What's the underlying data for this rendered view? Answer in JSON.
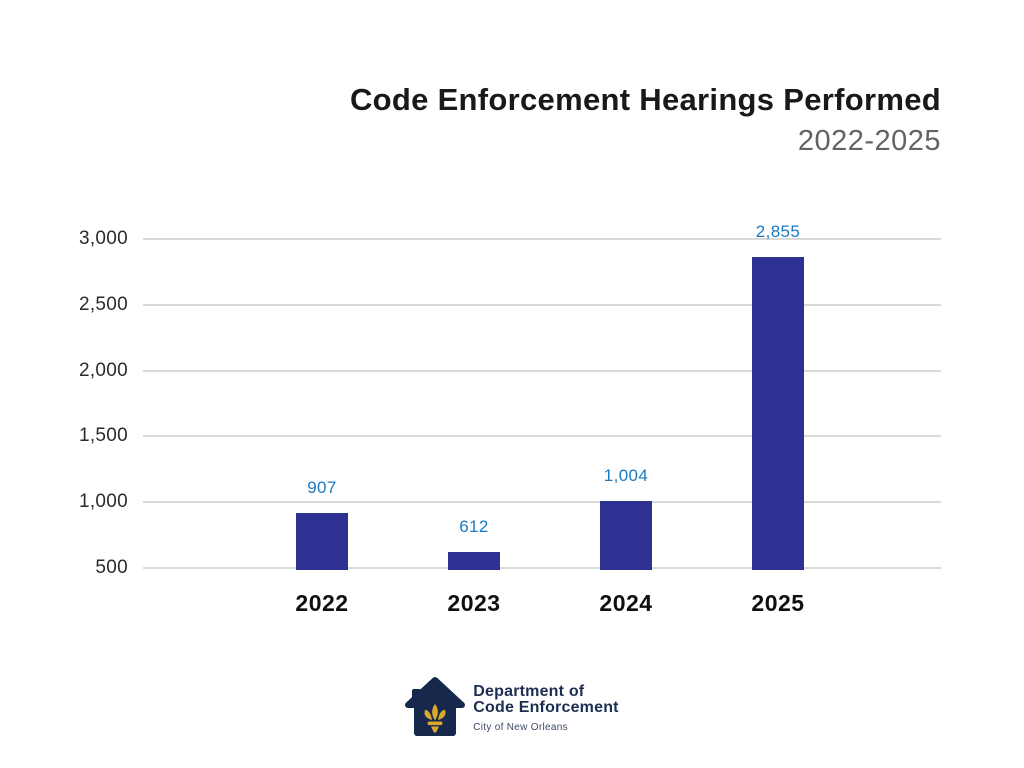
{
  "chart": {
    "title": "Code Enforcement Hearings Performed",
    "subtitle": "2022-2025"
  },
  "chart_data": {
    "type": "bar",
    "title": "Code Enforcement Hearings Performed",
    "subtitle": "2022-2025",
    "categories": [
      "2022",
      "2023",
      "2024",
      "2025"
    ],
    "values": [
      907,
      612,
      1004,
      2855
    ],
    "value_labels": [
      "907",
      "612",
      "1,004",
      "2,855"
    ],
    "xlabel": "",
    "ylabel": "",
    "y_ticks": [
      500,
      1000,
      1500,
      2000,
      2500,
      3000
    ],
    "y_tick_labels": [
      "500",
      "1,000",
      "1,500",
      "2,000",
      "2,500",
      "3,000"
    ],
    "ylim": [
      470,
      3000
    ],
    "grid": "horizontal gridlines only",
    "legend": "none",
    "bar_color": "#2e3192",
    "value_label_color": "#1a7ac1",
    "gridline_color": "#dadada"
  },
  "footer": {
    "logo_icon": "house-fleur-de-lis-icon",
    "org_line1": "Department of",
    "org_line2": "Code Enforcement",
    "org_sub": "City of New Orleans"
  },
  "colors": {
    "background": "#ffffff",
    "title": "#191919",
    "subtitle": "#636363",
    "bar": "#2e3192",
    "value_label": "#1a7ac1",
    "axis_text": "#2b2b2b",
    "logo_navy": "#16294d",
    "logo_gold": "#d9a92d"
  }
}
